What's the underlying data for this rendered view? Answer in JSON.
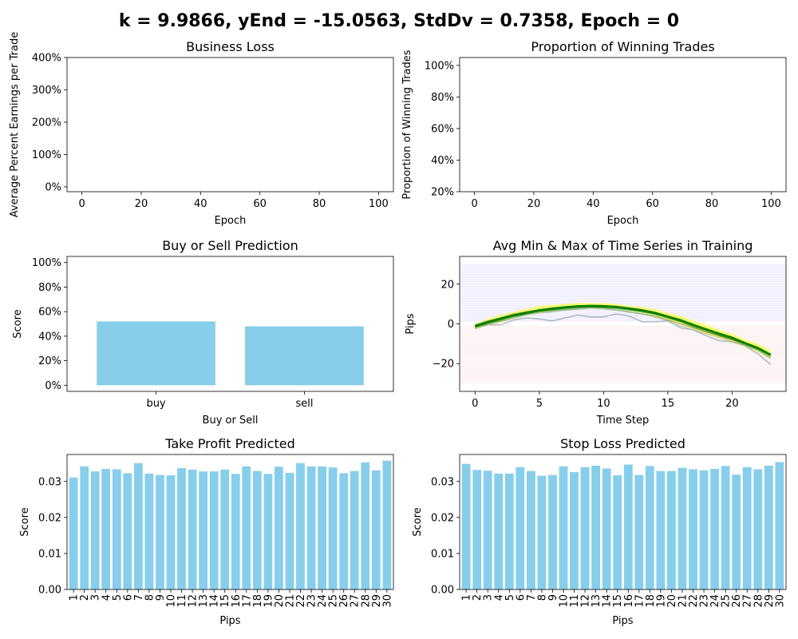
{
  "suptitle": "k = 9.9866, yEnd = -15.0563, StdDv = 0.7358, Epoch = 0",
  "chart_data": [
    {
      "id": "business_loss",
      "type": "line",
      "title": "Business Loss",
      "xlabel": "Epoch",
      "ylabel": "Average Percent Earnings per Trade",
      "xlim": [
        -5,
        105
      ],
      "ylim": [
        -0.15,
        4.0
      ],
      "xticks": [
        0,
        20,
        40,
        60,
        80,
        100
      ],
      "xticklabels": [
        "0",
        "20",
        "40",
        "60",
        "80",
        "100"
      ],
      "yticks": [
        0,
        1,
        2,
        3,
        4
      ],
      "yticklabels": [
        "0%",
        "100%",
        "200%",
        "300%",
        "400%"
      ],
      "series": []
    },
    {
      "id": "winning_trades",
      "type": "line",
      "title": "Proportion of Winning Trades",
      "xlabel": "Epoch",
      "ylabel": "Proportion of Winning Trades",
      "xlim": [
        -5,
        105
      ],
      "ylim": [
        0.2,
        1.05
      ],
      "xticks": [
        0,
        20,
        40,
        60,
        80,
        100
      ],
      "xticklabels": [
        "0",
        "20",
        "40",
        "60",
        "80",
        "100"
      ],
      "yticks": [
        0.2,
        0.4,
        0.6,
        0.8,
        1.0
      ],
      "yticklabels": [
        "20%",
        "40%",
        "60%",
        "80%",
        "100%"
      ],
      "series": []
    },
    {
      "id": "buy_sell",
      "type": "bar",
      "title": "Buy or Sell Prediction",
      "xlabel": "Buy or Sell",
      "ylabel": "Score",
      "categories": [
        "buy",
        "sell"
      ],
      "values": [
        0.52,
        0.48
      ],
      "bar_color": "#87CEEB",
      "ylim": [
        -0.05,
        1.05
      ],
      "yticks": [
        0,
        0.2,
        0.4,
        0.6,
        0.8,
        1.0
      ],
      "yticklabels": [
        "0%",
        "20%",
        "40%",
        "60%",
        "80%",
        "100%"
      ]
    },
    {
      "id": "min_max",
      "type": "line",
      "title": "Avg Min & Max of Time Series in Training",
      "xlabel": "Time Step",
      "ylabel": "Pips",
      "xlim": [
        -1.2,
        24.2
      ],
      "ylim": [
        -34,
        34
      ],
      "xticks": [
        0,
        5,
        10,
        15,
        20
      ],
      "xticklabels": [
        "0",
        "5",
        "10",
        "15",
        "20"
      ],
      "yticks": [
        -20,
        0,
        20
      ],
      "yticklabels": [
        "−20",
        "0",
        "20"
      ],
      "bands": [
        {
          "y0": 1,
          "y1": 30,
          "color": "#7B68EE"
        },
        {
          "y0": -30,
          "y1": -1,
          "color": "#F08080"
        }
      ],
      "x": [
        0,
        1,
        2,
        3,
        4,
        5,
        6,
        7,
        8,
        9,
        10,
        11,
        12,
        13,
        14,
        15,
        16,
        17,
        18,
        19,
        20,
        21,
        22,
        23
      ],
      "series": [
        {
          "color": "#FFFF00",
          "role": "band-upper",
          "values": [
            0,
            2.5,
            4.5,
            6,
            7.5,
            9,
            9.5,
            10,
            10.5,
            10.5,
            10.5,
            10,
            9,
            8.5,
            7.5,
            5.5,
            4,
            1.5,
            -0.5,
            -3,
            -5,
            -8,
            -10,
            -13.5
          ]
        },
        {
          "color": "#FFFF00",
          "role": "band-lower",
          "values": [
            -2.5,
            -0.5,
            1,
            3,
            4.5,
            5.5,
            6.5,
            7.5,
            8,
            8,
            8,
            7.5,
            6.5,
            5.5,
            4,
            2,
            0,
            -2.5,
            -5,
            -7,
            -9,
            -11.5,
            -14,
            -17.5
          ]
        },
        {
          "color": "#008000",
          "role": "mean",
          "values": [
            -1.2,
            0.8,
            2.6,
            4.2,
            5.6,
            6.8,
            7.6,
            8.3,
            8.8,
            9.0,
            8.9,
            8.5,
            7.7,
            6.8,
            5.5,
            3.6,
            1.8,
            -0.6,
            -2.8,
            -5.0,
            -7.0,
            -9.7,
            -12.2,
            -15.6
          ]
        },
        {
          "color": "#2E8B57",
          "role": "sample",
          "values": [
            -1.5,
            0.5,
            2,
            4,
            5,
            6.5,
            7,
            7.5,
            8,
            8.5,
            8.2,
            7.8,
            7,
            6,
            5,
            3.5,
            1.5,
            -1,
            -3,
            -5,
            -7,
            -9.5,
            -12,
            -16
          ]
        },
        {
          "color": "#6B8E23",
          "role": "sample",
          "values": [
            -2,
            0,
            1.5,
            3,
            5,
            6,
            6.5,
            7,
            7.5,
            8,
            8,
            7,
            6,
            5,
            4,
            2,
            0,
            -2,
            -4,
            -6,
            -8,
            -10.5,
            -13,
            -17
          ]
        },
        {
          "color": "#556B2F",
          "role": "sample",
          "values": [
            -0.5,
            1.5,
            3,
            5,
            6,
            7,
            8,
            8.5,
            9,
            9.2,
            9,
            8.5,
            7.5,
            6.5,
            5,
            3,
            1,
            -1.5,
            -4,
            -6,
            -8,
            -10,
            -12.5,
            -15.5
          ]
        },
        {
          "color": "#778899",
          "role": "sample",
          "values": [
            -1,
            -0.5,
            -0.5,
            2,
            3,
            2.5,
            1.5,
            3,
            4.5,
            3.5,
            3.5,
            5,
            4,
            1,
            1,
            1.5,
            -2,
            -3,
            -6,
            -8.5,
            -9,
            -11,
            -15,
            -20.5
          ]
        },
        {
          "color": "#8FBC8F",
          "role": "sample",
          "values": [
            -2.5,
            -0.5,
            1,
            3,
            4.5,
            5.5,
            6,
            7,
            7.5,
            8,
            7.5,
            7,
            6,
            5,
            3.5,
            1.5,
            -1,
            -3,
            -5,
            -7,
            -9,
            -11,
            -13.5,
            -17.5
          ]
        }
      ]
    },
    {
      "id": "take_profit",
      "type": "bar",
      "title": "Take Profit Predicted",
      "xlabel": "Pips",
      "ylabel": "Score",
      "bar_color": "#87CEEB",
      "categories": [
        "1",
        "2",
        "3",
        "4",
        "5",
        "6",
        "7",
        "8",
        "9",
        "10",
        "11",
        "12",
        "13",
        "14",
        "15",
        "16",
        "17",
        "18",
        "19",
        "20",
        "21",
        "22",
        "23",
        "24",
        "25",
        "26",
        "27",
        "28",
        "29",
        "30"
      ],
      "values": [
        0.0311,
        0.0342,
        0.0328,
        0.0335,
        0.0334,
        0.0323,
        0.0351,
        0.0322,
        0.0318,
        0.0317,
        0.0337,
        0.0333,
        0.0328,
        0.0328,
        0.0333,
        0.0321,
        0.0342,
        0.0329,
        0.0321,
        0.0341,
        0.0324,
        0.0351,
        0.0342,
        0.0342,
        0.0339,
        0.0323,
        0.0329,
        0.0353,
        0.0331,
        0.0358
      ],
      "ylim": [
        0,
        0.0375
      ],
      "yticks": [
        0,
        0.01,
        0.02,
        0.03
      ],
      "yticklabels": [
        "0.00",
        "0.01",
        "0.02",
        "0.03"
      ]
    },
    {
      "id": "stop_loss",
      "type": "bar",
      "title": "Stop Loss Predicted",
      "xlabel": "Pips",
      "ylabel": "Score",
      "bar_color": "#87CEEB",
      "categories": [
        "1",
        "2",
        "3",
        "4",
        "5",
        "6",
        "7",
        "8",
        "9",
        "10",
        "11",
        "12",
        "13",
        "14",
        "15",
        "16",
        "17",
        "18",
        "19",
        "20",
        "21",
        "22",
        "23",
        "24",
        "25",
        "26",
        "27",
        "28",
        "29",
        "30"
      ],
      "values": [
        0.0349,
        0.0332,
        0.033,
        0.0322,
        0.0322,
        0.034,
        0.0329,
        0.0316,
        0.0318,
        0.0342,
        0.0326,
        0.034,
        0.0344,
        0.0336,
        0.0317,
        0.0347,
        0.0318,
        0.0343,
        0.0329,
        0.0329,
        0.0338,
        0.0334,
        0.0331,
        0.0335,
        0.0343,
        0.0319,
        0.034,
        0.0334,
        0.0344,
        0.0354
      ],
      "ylim": [
        0,
        0.0375
      ],
      "yticks": [
        0,
        0.01,
        0.02,
        0.03
      ],
      "yticklabels": [
        "0.00",
        "0.01",
        "0.02",
        "0.03"
      ]
    }
  ]
}
